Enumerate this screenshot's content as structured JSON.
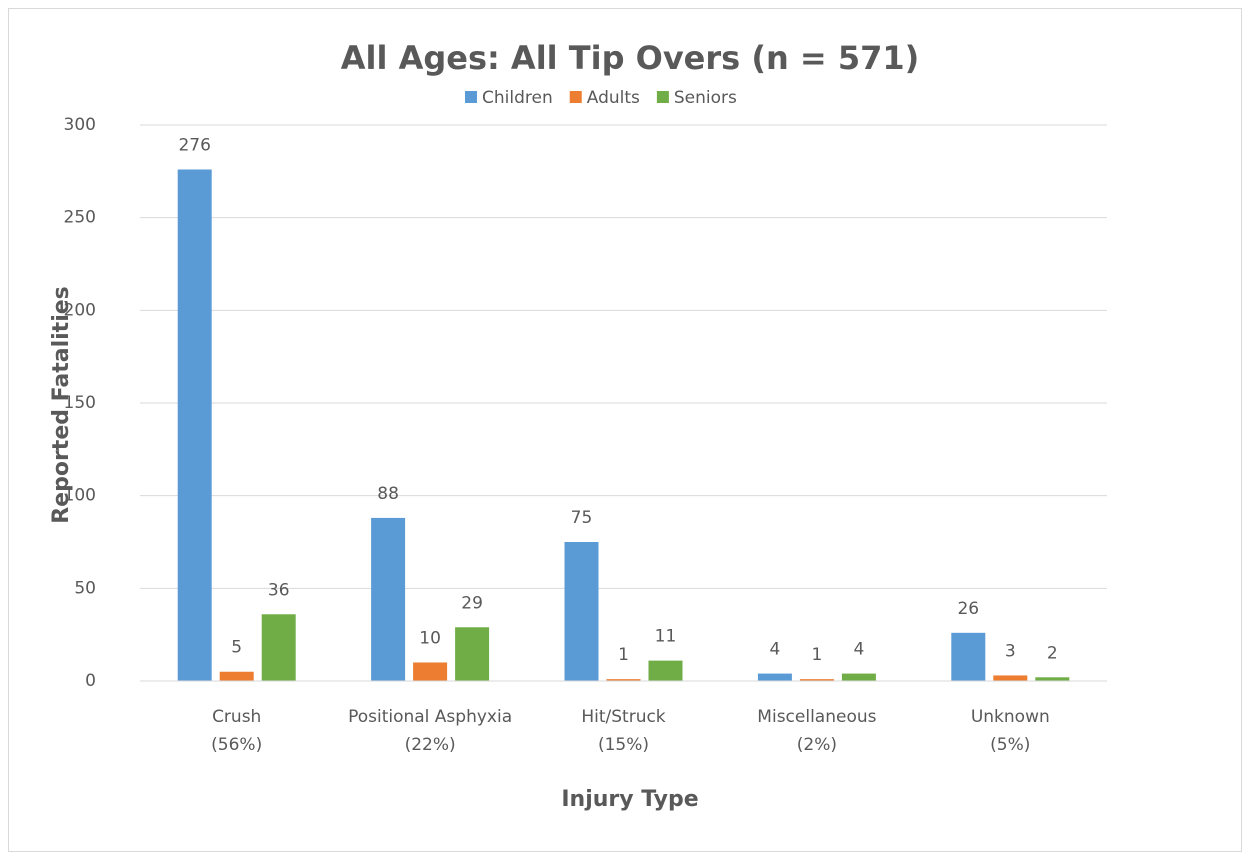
{
  "chart_data": {
    "type": "bar",
    "title": "All Ages: All Tip Overs (n = 571)",
    "x_label": "Injury Type",
    "y_label": "Reported Fatalities",
    "categories": [
      [
        "Crush",
        "(56%)"
      ],
      [
        "Positional Asphyxia",
        "(22%)"
      ],
      [
        "Hit/Struck",
        "(15%)"
      ],
      [
        "Miscellaneous",
        "(2%)"
      ],
      [
        "Unknown",
        "(5%)"
      ]
    ],
    "series": [
      {
        "name": "Children",
        "color": "#5b9bd5",
        "values": [
          276,
          88,
          75,
          4,
          26
        ]
      },
      {
        "name": "Adults",
        "color": "#ed7d31",
        "values": [
          5,
          10,
          1,
          1,
          3
        ]
      },
      {
        "name": "Seniors",
        "color": "#70ad47",
        "values": [
          36,
          29,
          11,
          4,
          2
        ]
      }
    ],
    "ylim": [
      0,
      300
    ],
    "yticks": [
      0,
      50,
      100,
      150,
      200,
      250,
      300
    ],
    "grid": true,
    "legend": "top",
    "data_labels": true
  }
}
